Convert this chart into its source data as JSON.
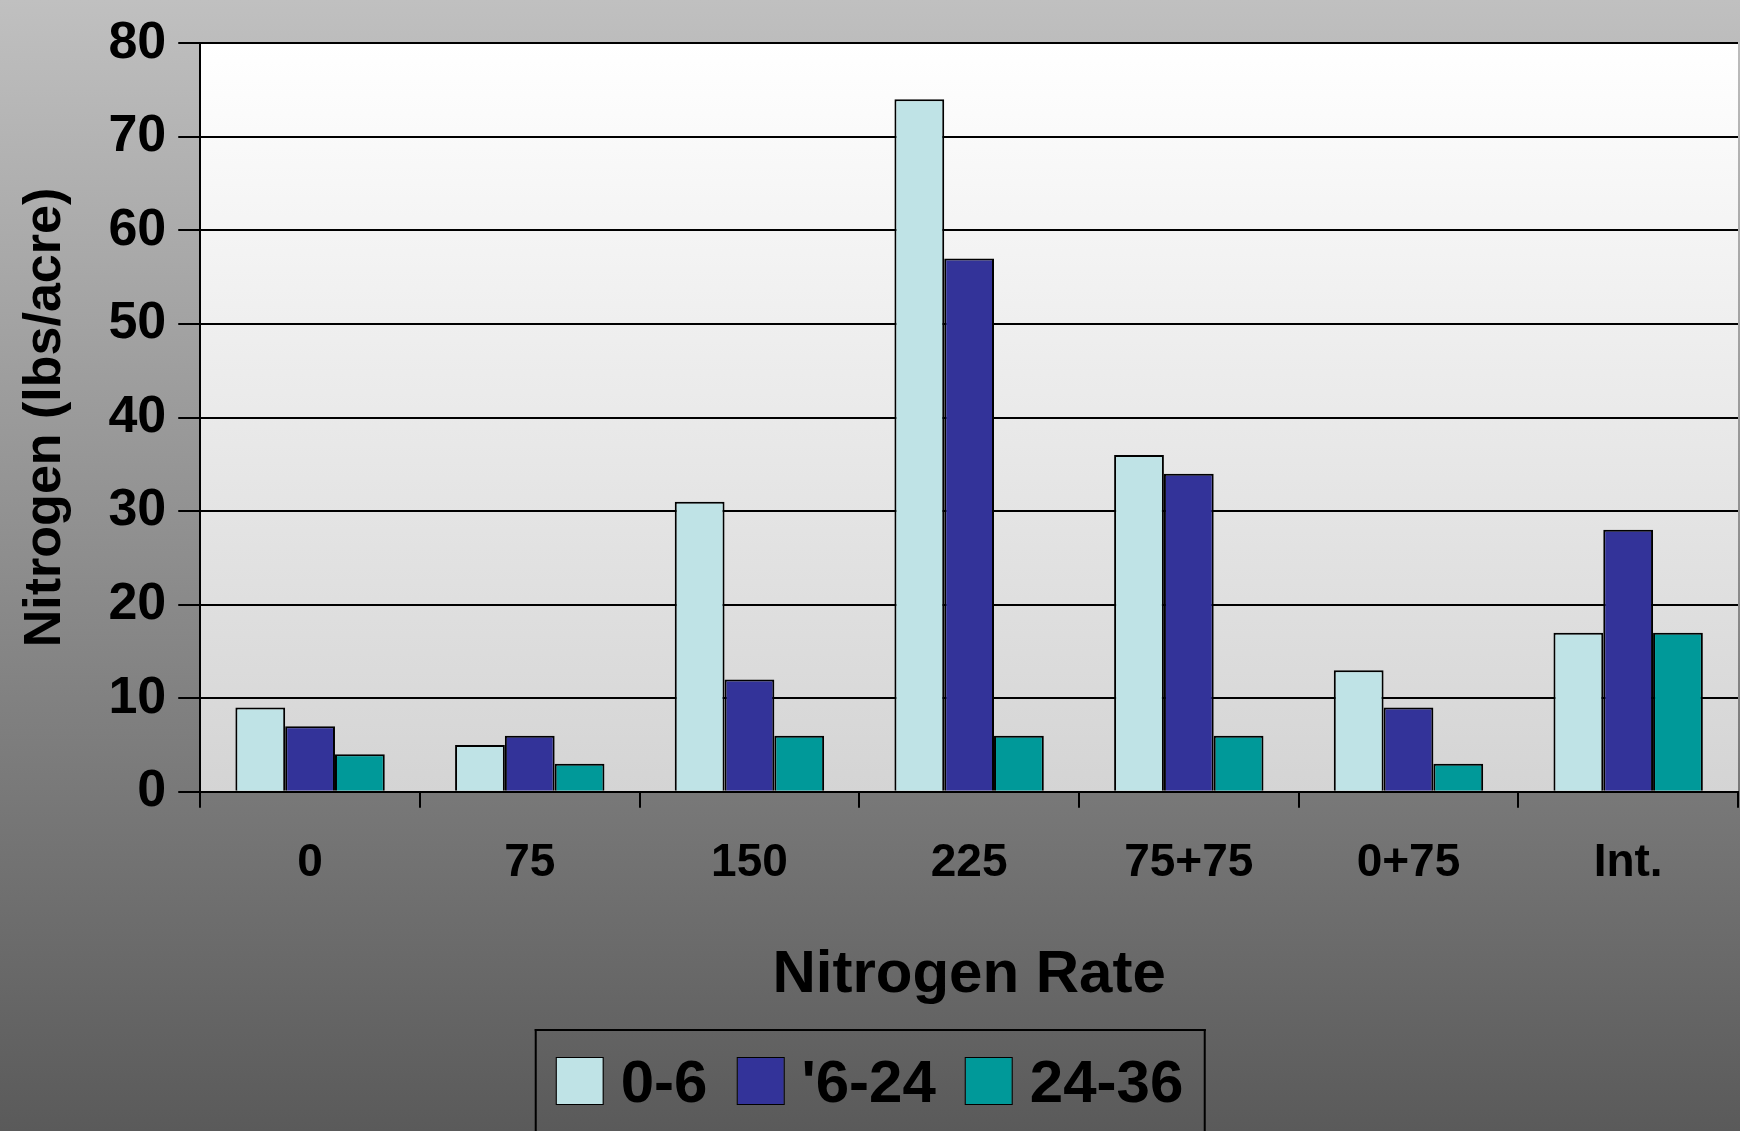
{
  "chart_data": {
    "type": "bar",
    "xlabel": "Nitrogen Rate",
    "ylabel": "Nitrogen (lbs/acre)",
    "categories": [
      "0",
      "75",
      "150",
      "225",
      "75+75",
      "0+75",
      "Int."
    ],
    "series": [
      {
        "name": "0-6",
        "color": "#bfe3e6",
        "values": [
          9,
          5,
          31,
          74,
          36,
          13,
          17
        ]
      },
      {
        "name": "'6-24",
        "color": "#333399",
        "values": [
          7,
          6,
          12,
          57,
          34,
          9,
          28
        ]
      },
      {
        "name": "24-36",
        "color": "#009999",
        "values": [
          4,
          3,
          6,
          6,
          6,
          3,
          17
        ]
      }
    ],
    "ylim": [
      0,
      80
    ],
    "yticks": [
      0,
      10,
      20,
      30,
      40,
      50,
      60,
      70,
      80
    ],
    "grid": "y",
    "legend": "bottom"
  }
}
